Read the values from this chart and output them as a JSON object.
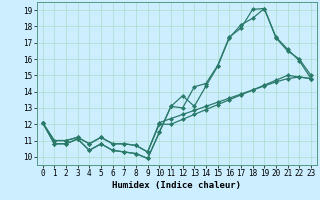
{
  "xlabel": "Humidex (Indice chaleur)",
  "bg_color": "#cceeff",
  "grid_color": "#aaddcc",
  "line_color": "#2a7a6a",
  "marker": "D",
  "markersize": 2.0,
  "linewidth": 0.9,
  "xlim": [
    -0.5,
    23.5
  ],
  "ylim": [
    9.5,
    19.5
  ],
  "yticks": [
    10,
    11,
    12,
    13,
    14,
    15,
    16,
    17,
    18,
    19
  ],
  "xticks": [
    0,
    1,
    2,
    3,
    4,
    5,
    6,
    7,
    8,
    9,
    10,
    11,
    12,
    13,
    14,
    15,
    16,
    17,
    18,
    19,
    20,
    21,
    22,
    23
  ],
  "tick_fontsize": 5.5,
  "xlabel_fontsize": 6.5,
  "series": [
    [
      12.1,
      10.8,
      10.8,
      11.1,
      10.4,
      10.8,
      10.4,
      10.3,
      10.2,
      9.9,
      11.5,
      13.1,
      13.75,
      13.1,
      14.35,
      15.55,
      17.3,
      18.1,
      18.5,
      19.1,
      17.3,
      16.5,
      16.0,
      15.0
    ],
    [
      12.1,
      10.8,
      10.8,
      11.1,
      10.4,
      10.8,
      10.4,
      10.3,
      10.2,
      9.9,
      11.5,
      13.1,
      13.0,
      14.3,
      14.5,
      15.6,
      17.35,
      17.9,
      19.05,
      19.1,
      17.35,
      16.6,
      15.9,
      14.8
    ],
    [
      12.1,
      11.0,
      11.0,
      11.2,
      10.8,
      11.2,
      10.8,
      10.8,
      10.7,
      10.3,
      12.0,
      12.0,
      12.3,
      12.6,
      12.9,
      13.2,
      13.5,
      13.8,
      14.1,
      14.4,
      14.7,
      15.0,
      14.9,
      14.8
    ],
    [
      12.1,
      11.0,
      11.0,
      11.2,
      10.8,
      11.2,
      10.8,
      10.8,
      10.7,
      10.3,
      12.1,
      12.35,
      12.6,
      12.85,
      13.1,
      13.35,
      13.6,
      13.85,
      14.1,
      14.35,
      14.6,
      14.8,
      14.9,
      14.8
    ]
  ]
}
